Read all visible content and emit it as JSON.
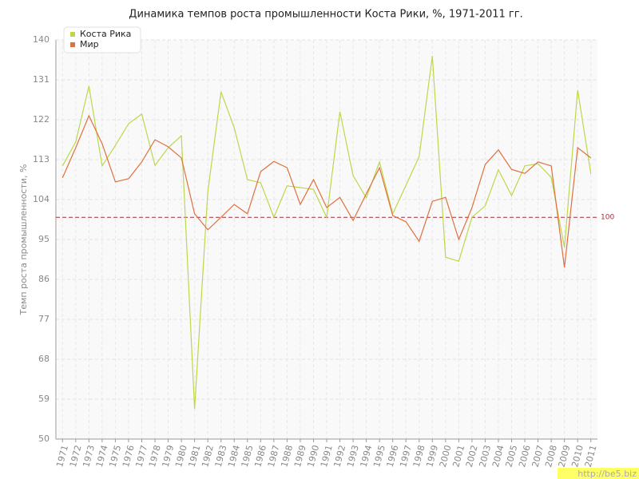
{
  "chart_data": {
    "type": "line",
    "title": "Динамика темпов роста промышленности Коста Рики, %, 1971-2011 гг.",
    "y_label": "Темп роста промышленности, %",
    "categories": [
      "1971",
      "1972",
      "1973",
      "1974",
      "1975",
      "1976",
      "1977",
      "1978",
      "1979",
      "1980",
      "1981",
      "1982",
      "1983",
      "1984",
      "1985",
      "1986",
      "1987",
      "1988",
      "1989",
      "1990",
      "1991",
      "1992",
      "1993",
      "1994",
      "1995",
      "1996",
      "1997",
      "1998",
      "1999",
      "2000",
      "2001",
      "2002",
      "2003",
      "2004",
      "2005",
      "2006",
      "2007",
      "2008",
      "2009",
      "2010",
      "2011"
    ],
    "series": [
      {
        "name": "Коста Рика",
        "color": "#bcd84a",
        "values": [
          111.6,
          117,
          129.6,
          111.6,
          116.2,
          121.1,
          123.3,
          111.7,
          115.7,
          118.4,
          56.8,
          105.8,
          128.3,
          120.2,
          108.5,
          107.8,
          100,
          107.1,
          106.7,
          106.3,
          100,
          123.8,
          109.4,
          104.4,
          112.5,
          100.8,
          107.2,
          113.7,
          136.4,
          91,
          90.1,
          100,
          102.6,
          110.7,
          104.9,
          111.6,
          112.1,
          109,
          93.2,
          128.7,
          109.8
        ]
      },
      {
        "name": "Мир",
        "color": "#e0703f",
        "values": [
          108.9,
          115.7,
          122.9,
          116.6,
          108,
          108.7,
          112.5,
          117.5,
          115.9,
          113.4,
          100.8,
          97.2,
          100,
          102.9,
          100.8,
          110.3,
          112.6,
          111.2,
          102.9,
          108.5,
          102.2,
          104.5,
          99.3,
          105.3,
          111.2,
          100.4,
          99,
          94.6,
          103.6,
          104.5,
          95,
          102.2,
          111.9,
          115.2,
          110.8,
          109.9,
          112.5,
          111.6,
          88.7,
          115.7,
          113.4
        ]
      }
    ],
    "ylim": [
      50,
      140
    ],
    "yticks": [
      50,
      59,
      68,
      77,
      86,
      95,
      104,
      113,
      122,
      131,
      140
    ],
    "grid": true,
    "legend": "top-left",
    "reference_line": 100,
    "reference_color": "#a03040",
    "watermark": "http://be5.biz"
  }
}
